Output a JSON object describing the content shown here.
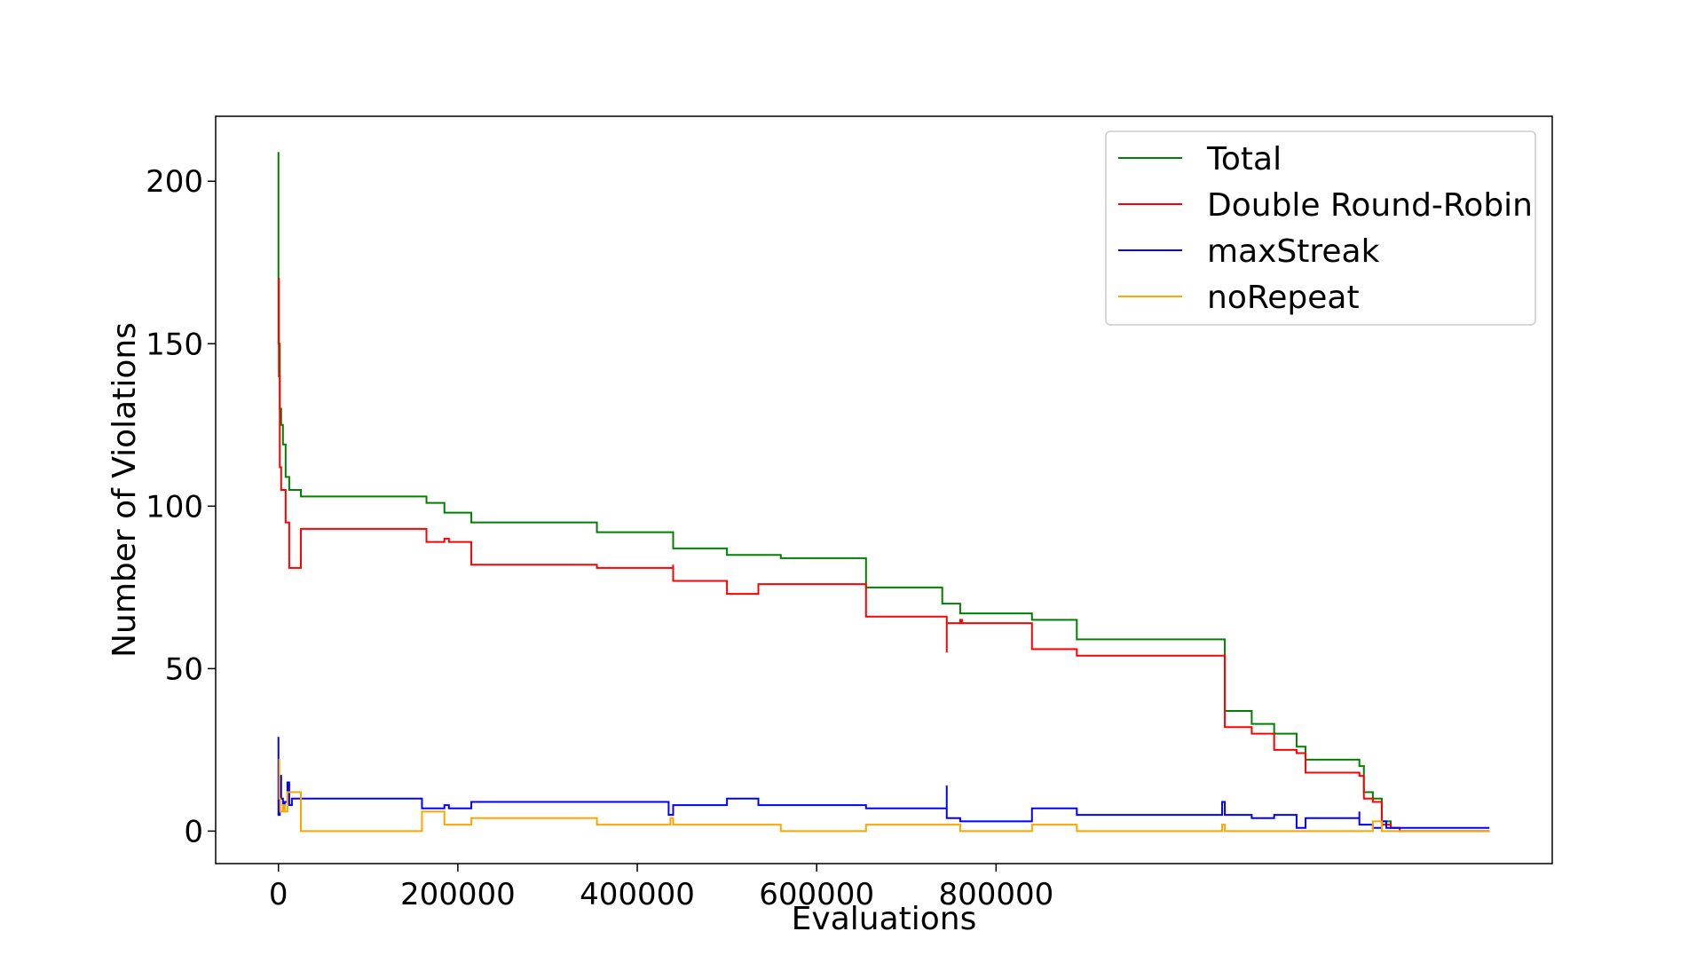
{
  "chart_data": {
    "type": "line",
    "title": "",
    "xlabel": "Evaluations",
    "ylabel": "Number of Violations",
    "xlim": [
      -70000,
      1420000
    ],
    "ylim": [
      -10,
      220
    ],
    "x_ticks": [
      0,
      200000,
      400000,
      600000,
      800000
    ],
    "y_ticks": [
      0,
      50,
      100,
      150,
      200
    ],
    "grid": false,
    "legend_position": "top-right",
    "step": true,
    "series": [
      {
        "name": "Total",
        "color": "#008000",
        "points": [
          [
            0,
            209
          ],
          [
            0,
            150
          ],
          [
            1500,
            130
          ],
          [
            3000,
            125
          ],
          [
            5000,
            119
          ],
          [
            8000,
            109
          ],
          [
            12000,
            105
          ],
          [
            25000,
            103
          ],
          [
            165000,
            103
          ],
          [
            165000,
            101
          ],
          [
            185000,
            101
          ],
          [
            185000,
            98
          ],
          [
            215000,
            98
          ],
          [
            215000,
            95
          ],
          [
            355000,
            95
          ],
          [
            355000,
            92
          ],
          [
            435000,
            92
          ],
          [
            440000,
            90
          ],
          [
            440000,
            87
          ],
          [
            500000,
            87
          ],
          [
            500000,
            85
          ],
          [
            560000,
            85
          ],
          [
            560000,
            84
          ],
          [
            655000,
            84
          ],
          [
            655000,
            75
          ],
          [
            740000,
            75
          ],
          [
            740000,
            70
          ],
          [
            760000,
            70
          ],
          [
            760000,
            67
          ],
          [
            840000,
            67
          ],
          [
            840000,
            65
          ],
          [
            890000,
            65
          ],
          [
            890000,
            59
          ],
          [
            1050000,
            59
          ],
          [
            1055000,
            45
          ],
          [
            1055000,
            37
          ],
          [
            1085000,
            37
          ],
          [
            1085000,
            33
          ],
          [
            1110000,
            33
          ],
          [
            1110000,
            30
          ],
          [
            1135000,
            30
          ],
          [
            1135000,
            26
          ],
          [
            1145000,
            26
          ],
          [
            1145000,
            22
          ],
          [
            1205000,
            22
          ],
          [
            1205000,
            20
          ],
          [
            1210000,
            12
          ],
          [
            1220000,
            12
          ],
          [
            1220000,
            10
          ],
          [
            1230000,
            10
          ],
          [
            1230000,
            3
          ],
          [
            1240000,
            3
          ],
          [
            1240000,
            1
          ],
          [
            1250000,
            1
          ],
          [
            1250000,
            0
          ],
          [
            1350000,
            0
          ]
        ]
      },
      {
        "name": "Double Round-Robin",
        "color": "#ff0000",
        "points": [
          [
            0,
            170
          ],
          [
            500,
            140
          ],
          [
            1500,
            112
          ],
          [
            3000,
            105
          ],
          [
            8000,
            95
          ],
          [
            10000,
            95
          ],
          [
            12000,
            81
          ],
          [
            25000,
            81
          ],
          [
            25000,
            93
          ],
          [
            165000,
            93
          ],
          [
            165000,
            89
          ],
          [
            185000,
            89
          ],
          [
            185000,
            90
          ],
          [
            190000,
            89
          ],
          [
            215000,
            89
          ],
          [
            215000,
            82
          ],
          [
            355000,
            82
          ],
          [
            355000,
            81
          ],
          [
            435000,
            81
          ],
          [
            440000,
            82
          ],
          [
            440000,
            77
          ],
          [
            500000,
            77
          ],
          [
            500000,
            73
          ],
          [
            535000,
            73
          ],
          [
            535000,
            76
          ],
          [
            655000,
            76
          ],
          [
            655000,
            66
          ],
          [
            740000,
            66
          ],
          [
            745000,
            55
          ],
          [
            745000,
            64
          ],
          [
            760000,
            64
          ],
          [
            760000,
            65
          ],
          [
            762000,
            64
          ],
          [
            840000,
            64
          ],
          [
            840000,
            56
          ],
          [
            890000,
            56
          ],
          [
            890000,
            54
          ],
          [
            1050000,
            54
          ],
          [
            1055000,
            38
          ],
          [
            1055000,
            32
          ],
          [
            1085000,
            32
          ],
          [
            1085000,
            30
          ],
          [
            1110000,
            30
          ],
          [
            1110000,
            25
          ],
          [
            1135000,
            25
          ],
          [
            1135000,
            24
          ],
          [
            1145000,
            24
          ],
          [
            1145000,
            18
          ],
          [
            1205000,
            18
          ],
          [
            1205000,
            17
          ],
          [
            1210000,
            10
          ],
          [
            1220000,
            10
          ],
          [
            1220000,
            9
          ],
          [
            1230000,
            9
          ],
          [
            1230000,
            2
          ],
          [
            1240000,
            2
          ],
          [
            1240000,
            1
          ],
          [
            1250000,
            1
          ],
          [
            1250000,
            0
          ],
          [
            1350000,
            0
          ]
        ]
      },
      {
        "name": "maxStreak",
        "color": "#0000ff",
        "points": [
          [
            0,
            29
          ],
          [
            0,
            5
          ],
          [
            1500,
            17
          ],
          [
            3000,
            10
          ],
          [
            5000,
            8
          ],
          [
            7000,
            9
          ],
          [
            10000,
            15
          ],
          [
            12000,
            8
          ],
          [
            15000,
            10
          ],
          [
            160000,
            10
          ],
          [
            160000,
            7
          ],
          [
            185000,
            7
          ],
          [
            185000,
            8
          ],
          [
            190000,
            7
          ],
          [
            215000,
            7
          ],
          [
            215000,
            9
          ],
          [
            435000,
            9
          ],
          [
            435000,
            5
          ],
          [
            440000,
            8
          ],
          [
            500000,
            8
          ],
          [
            500000,
            10
          ],
          [
            535000,
            10
          ],
          [
            535000,
            8
          ],
          [
            655000,
            8
          ],
          [
            655000,
            7
          ],
          [
            740000,
            7
          ],
          [
            745000,
            14
          ],
          [
            745000,
            4
          ],
          [
            760000,
            4
          ],
          [
            760000,
            3
          ],
          [
            840000,
            3
          ],
          [
            840000,
            7
          ],
          [
            890000,
            7
          ],
          [
            890000,
            5
          ],
          [
            1050000,
            5
          ],
          [
            1052000,
            9
          ],
          [
            1055000,
            5
          ],
          [
            1085000,
            5
          ],
          [
            1085000,
            4
          ],
          [
            1110000,
            4
          ],
          [
            1110000,
            5
          ],
          [
            1135000,
            5
          ],
          [
            1135000,
            1
          ],
          [
            1145000,
            1
          ],
          [
            1145000,
            4
          ],
          [
            1205000,
            4
          ],
          [
            1205000,
            6
          ],
          [
            1205000,
            2
          ],
          [
            1220000,
            2
          ],
          [
            1220000,
            1
          ],
          [
            1230000,
            1
          ],
          [
            1230000,
            3
          ],
          [
            1235000,
            3
          ],
          [
            1235000,
            1
          ],
          [
            1350000,
            1
          ]
        ]
      },
      {
        "name": "noRepeat",
        "color": "#ffa500",
        "points": [
          [
            0,
            22
          ],
          [
            1000,
            10
          ],
          [
            2000,
            6
          ],
          [
            5000,
            8
          ],
          [
            7000,
            6
          ],
          [
            10000,
            12
          ],
          [
            15000,
            12
          ],
          [
            25000,
            0
          ],
          [
            160000,
            0
          ],
          [
            160000,
            6
          ],
          [
            185000,
            6
          ],
          [
            185000,
            2
          ],
          [
            215000,
            2
          ],
          [
            215000,
            4
          ],
          [
            355000,
            4
          ],
          [
            355000,
            2
          ],
          [
            435000,
            2
          ],
          [
            437000,
            4
          ],
          [
            440000,
            2
          ],
          [
            560000,
            2
          ],
          [
            560000,
            0
          ],
          [
            655000,
            0
          ],
          [
            655000,
            2
          ],
          [
            760000,
            2
          ],
          [
            760000,
            0
          ],
          [
            840000,
            0
          ],
          [
            840000,
            2
          ],
          [
            890000,
            2
          ],
          [
            890000,
            0
          ],
          [
            1050000,
            0
          ],
          [
            1052000,
            2
          ],
          [
            1055000,
            0
          ],
          [
            1220000,
            0
          ],
          [
            1220000,
            3
          ],
          [
            1230000,
            3
          ],
          [
            1230000,
            0
          ],
          [
            1350000,
            0
          ]
        ]
      }
    ]
  }
}
